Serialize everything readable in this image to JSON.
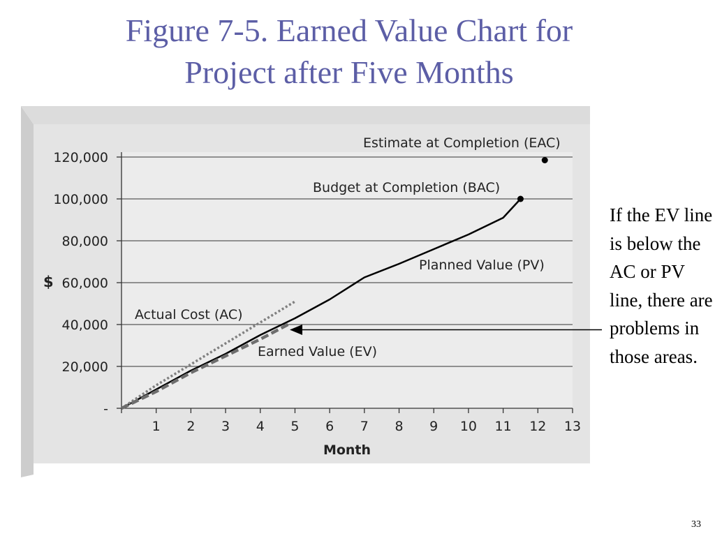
{
  "slide": {
    "title_line1": "Figure 7-5. Earned Value Chart for",
    "title_line2": "Project after Five Months",
    "side_note": "If the EV line is below the AC or PV line, there are problems in those areas.",
    "page_number": "33"
  },
  "chart_data": {
    "type": "line",
    "xlabel": "Month",
    "ylabel": "$",
    "xlim": [
      0,
      13
    ],
    "ylim": [
      0,
      120000
    ],
    "x_ticks": [
      "1",
      "2",
      "3",
      "4",
      "5",
      "6",
      "7",
      "8",
      "9",
      "10",
      "11",
      "12",
      "13"
    ],
    "y_ticks": [
      {
        "value": 0,
        "label": "-"
      },
      {
        "value": 20000,
        "label": "20,000"
      },
      {
        "value": 40000,
        "label": "40,000"
      },
      {
        "value": 60000,
        "label": "60,000"
      },
      {
        "value": 80000,
        "label": "80,000"
      },
      {
        "value": 100000,
        "label": "100,000"
      },
      {
        "value": 120000,
        "label": "120,000"
      }
    ],
    "grid": true,
    "series": [
      {
        "name": "Planned Value (PV)",
        "style": "solid",
        "color": "#000000",
        "points": [
          [
            0,
            0
          ],
          [
            1,
            9000
          ],
          [
            2,
            18000
          ],
          [
            3,
            26000
          ],
          [
            4,
            35000
          ],
          [
            5,
            43000
          ],
          [
            6,
            52000
          ],
          [
            7,
            62500
          ],
          [
            8,
            69000
          ],
          [
            9,
            76000
          ],
          [
            10,
            83000
          ],
          [
            11,
            91000
          ],
          [
            11.5,
            100000
          ]
        ]
      },
      {
        "name": "Actual Cost (AC)",
        "style": "dotted",
        "color": "#808080",
        "points": [
          [
            0,
            0
          ],
          [
            1,
            11000
          ],
          [
            2,
            21000
          ],
          [
            3,
            31000
          ],
          [
            4,
            41000
          ],
          [
            5,
            51000
          ]
        ]
      },
      {
        "name": "Earned Value (EV)",
        "style": "dashed",
        "color": "#6e6e6e",
        "points": [
          [
            0,
            0
          ],
          [
            1,
            8000
          ],
          [
            2,
            17000
          ],
          [
            3,
            25000
          ],
          [
            4,
            33000
          ],
          [
            4.8,
            40000
          ]
        ]
      }
    ],
    "markers": [
      {
        "name": "Estimate at Completion (EAC)",
        "x": 12.2,
        "y": 118500
      },
      {
        "name": "Budget at Completion (BAC)",
        "x": 11.5,
        "y": 100000
      }
    ],
    "arrow_target": {
      "x": 4.8,
      "y": 37500
    }
  }
}
